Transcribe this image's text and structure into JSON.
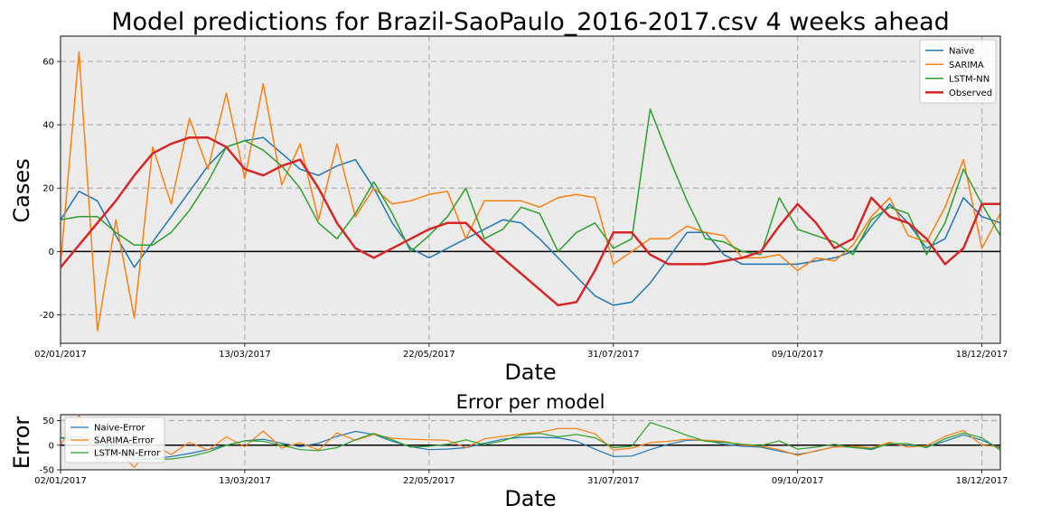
{
  "chart_data": [
    {
      "type": "line",
      "title": "Model predictions for Brazil-SaoPaulo_2016-2017.csv 4 weeks ahead",
      "xlabel": "Date",
      "ylabel": "Cases",
      "ylim": [
        -29,
        68
      ],
      "yticks": [
        -20,
        0,
        20,
        40,
        60
      ],
      "xticks": [
        {
          "week": 0,
          "label": "02/01/2017"
        },
        {
          "week": 10,
          "label": "13/03/2017"
        },
        {
          "week": 20,
          "label": "22/05/2017"
        },
        {
          "week": 30,
          "label": "31/07/2017"
        },
        {
          "week": 40,
          "label": "09/10/2017"
        },
        {
          "week": 50,
          "label": "18/12/2017"
        }
      ],
      "grid": true,
      "legend": "top-right",
      "x": [
        0,
        1,
        2,
        3,
        4,
        5,
        6,
        7,
        8,
        9,
        10,
        11,
        12,
        13,
        14,
        15,
        16,
        17,
        18,
        19,
        20,
        21,
        22,
        23,
        24,
        25,
        26,
        27,
        28,
        29,
        30,
        31,
        32,
        33,
        34,
        35,
        36,
        37,
        38,
        39,
        40,
        41,
        42,
        43,
        44,
        45,
        46,
        47,
        48,
        49,
        50,
        51
      ],
      "series": [
        {
          "name": "Naive",
          "color": "#1f77b4",
          "width": 1.5,
          "values": [
            10,
            19,
            16,
            5,
            -5,
            3,
            11,
            19,
            27,
            33,
            35,
            36,
            31,
            26,
            24,
            27,
            29,
            20,
            9,
            1,
            -2,
            1,
            4,
            7,
            10,
            9,
            4,
            -2,
            -8,
            -14,
            -17,
            -16,
            -10,
            -2,
            6,
            6,
            -1,
            -4,
            -4,
            -4,
            -4,
            -3,
            -2,
            0,
            8,
            15,
            9,
            1,
            4,
            17,
            11,
            9
          ]
        },
        {
          "name": "SARIMA",
          "color": "#ff7f0e",
          "width": 1.5,
          "values": [
            -4,
            63,
            -25,
            10,
            -21,
            33,
            15,
            42,
            26,
            50,
            23,
            53,
            21,
            34,
            10,
            34,
            11,
            20,
            15,
            16,
            18,
            19,
            4,
            16,
            16,
            16,
            14,
            17,
            18,
            17,
            -4,
            0,
            4,
            4,
            8,
            6,
            5,
            -2,
            -2,
            -1,
            -6,
            -2,
            -3,
            2,
            11,
            17,
            5,
            3,
            14,
            29,
            1,
            12
          ]
        },
        {
          "name": "LSTM-NN",
          "color": "#2ca02c",
          "width": 1.5,
          "values": [
            10,
            11,
            11,
            6,
            2,
            2,
            6,
            13,
            22,
            33,
            35,
            32,
            27,
            20,
            9,
            4,
            12,
            22,
            12,
            0,
            5,
            11,
            20,
            4,
            7,
            14,
            12,
            0,
            6,
            9,
            1,
            4,
            45,
            30,
            16,
            4,
            3,
            0,
            -1,
            17,
            7,
            5,
            3,
            -1,
            10,
            14,
            12,
            -1,
            9,
            26,
            15,
            5
          ]
        },
        {
          "name": "Observed",
          "color": "#d62728",
          "width": 2.5,
          "values": [
            -5,
            2,
            9,
            16,
            24,
            31,
            34,
            36,
            36,
            33,
            26,
            24,
            27,
            29,
            20,
            9,
            1,
            -2,
            1,
            4,
            7,
            9,
            9,
            3,
            -2,
            -7,
            -12,
            -17,
            -16,
            -6,
            6,
            6,
            -1,
            -4,
            -4,
            -4,
            -3,
            -2,
            0,
            8,
            15,
            9,
            1,
            4,
            17,
            11,
            9,
            4,
            -4,
            1,
            15,
            15
          ]
        }
      ]
    },
    {
      "type": "line",
      "title": "Error per model",
      "xlabel": "Date",
      "ylabel": "Error",
      "ylim": [
        -50,
        62
      ],
      "yticks": [
        -50,
        0,
        50
      ],
      "xticks": [
        {
          "week": 0,
          "label": "02/01/2017"
        },
        {
          "week": 10,
          "label": "13/03/2017"
        },
        {
          "week": 20,
          "label": "22/05/2017"
        },
        {
          "week": 30,
          "label": "31/07/2017"
        },
        {
          "week": 40,
          "label": "09/10/2017"
        },
        {
          "week": 50,
          "label": "18/12/2017"
        }
      ],
      "grid": true,
      "legend": "top-left",
      "x": [
        0,
        1,
        2,
        3,
        4,
        5,
        6,
        7,
        8,
        9,
        10,
        11,
        12,
        13,
        14,
        15,
        16,
        17,
        18,
        19,
        20,
        21,
        22,
        23,
        24,
        25,
        26,
        27,
        28,
        29,
        30,
        31,
        32,
        33,
        34,
        35,
        36,
        37,
        38,
        39,
        40,
        41,
        42,
        43,
        44,
        45,
        46,
        47,
        48,
        49,
        50,
        51
      ],
      "series": [
        {
          "name": "Naive-Error",
          "color": "#1f77b4",
          "width": 1.2,
          "values": [
            15,
            17,
            7,
            -11,
            -29,
            -28,
            -23,
            -17,
            -9,
            0,
            9,
            12,
            4,
            -3,
            4,
            18,
            28,
            22,
            8,
            -3,
            -9,
            -8,
            -5,
            4,
            12,
            16,
            16,
            15,
            8,
            -8,
            -23,
            -22,
            -9,
            2,
            10,
            10,
            2,
            -2,
            -4,
            -12,
            -19,
            -12,
            -3,
            -4,
            -9,
            4,
            0,
            -3,
            8,
            21,
            10,
            -6
          ]
        },
        {
          "name": "SARIMA-Error",
          "color": "#ff7f0e",
          "width": 1.2,
          "values": [
            1,
            61,
            -34,
            -6,
            -45,
            2,
            -19,
            6,
            -10,
            17,
            -3,
            29,
            -6,
            5,
            -10,
            25,
            10,
            22,
            14,
            12,
            11,
            10,
            -5,
            13,
            18,
            23,
            26,
            34,
            34,
            23,
            -10,
            -6,
            5,
            8,
            12,
            10,
            8,
            0,
            -2,
            -9,
            -21,
            -11,
            -4,
            -2,
            -6,
            6,
            -4,
            -1,
            18,
            30,
            0,
            -3
          ]
        },
        {
          "name": "LSTM-NN-Error",
          "color": "#2ca02c",
          "width": 1.2,
          "values": [
            15,
            9,
            2,
            -10,
            -22,
            -29,
            -28,
            -23,
            -14,
            0,
            9,
            8,
            0,
            -9,
            -11,
            -5,
            11,
            24,
            11,
            -4,
            -2,
            2,
            11,
            1,
            9,
            21,
            24,
            17,
            22,
            15,
            -5,
            -2,
            46,
            34,
            20,
            8,
            6,
            2,
            -1,
            9,
            -8,
            -4,
            2,
            -5,
            -7,
            3,
            3,
            -5,
            13,
            25,
            15,
            -10
          ]
        }
      ]
    }
  ]
}
